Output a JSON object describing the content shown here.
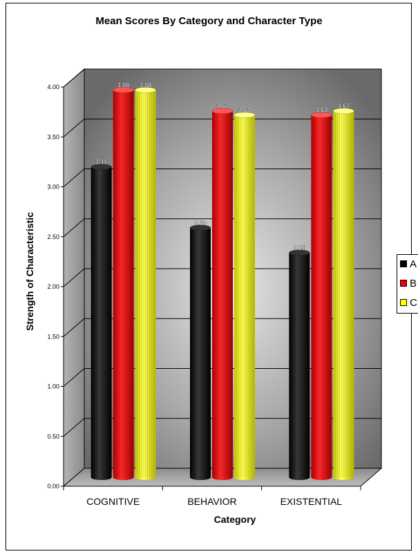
{
  "chart_data": {
    "type": "bar",
    "title": "Mean Scores By Category and Character Type",
    "xlabel": "Category",
    "ylabel": "Strength of Characteristic",
    "categories": [
      "COGNITIVE",
      "BEHAVIOR",
      "EXISTENTIAL"
    ],
    "series": [
      {
        "name": "A",
        "color": "#000000",
        "values": [
          3.11,
          2.5,
          2.25
        ],
        "labels": [
          "3.11",
          "2.50",
          "2.25"
        ]
      },
      {
        "name": "B",
        "color": "#ee0000",
        "values": [
          3.88,
          3.67,
          3.63
        ],
        "labels": [
          "3.88",
          "3.67",
          "3.63"
        ]
      },
      {
        "name": "C",
        "color": "#ffff00",
        "values": [
          3.88,
          3.63,
          3.67
        ],
        "labels": [
          "3.88",
          "3.63",
          "3.67"
        ]
      }
    ],
    "ylim": [
      0,
      4
    ],
    "yticks": [
      "0.00",
      "0.50",
      "1.00",
      "1.50",
      "2.00",
      "2.50",
      "3.00",
      "3.50",
      "4.00"
    ],
    "grid": true,
    "legend_position": "right",
    "style": "3d-cylinder"
  }
}
